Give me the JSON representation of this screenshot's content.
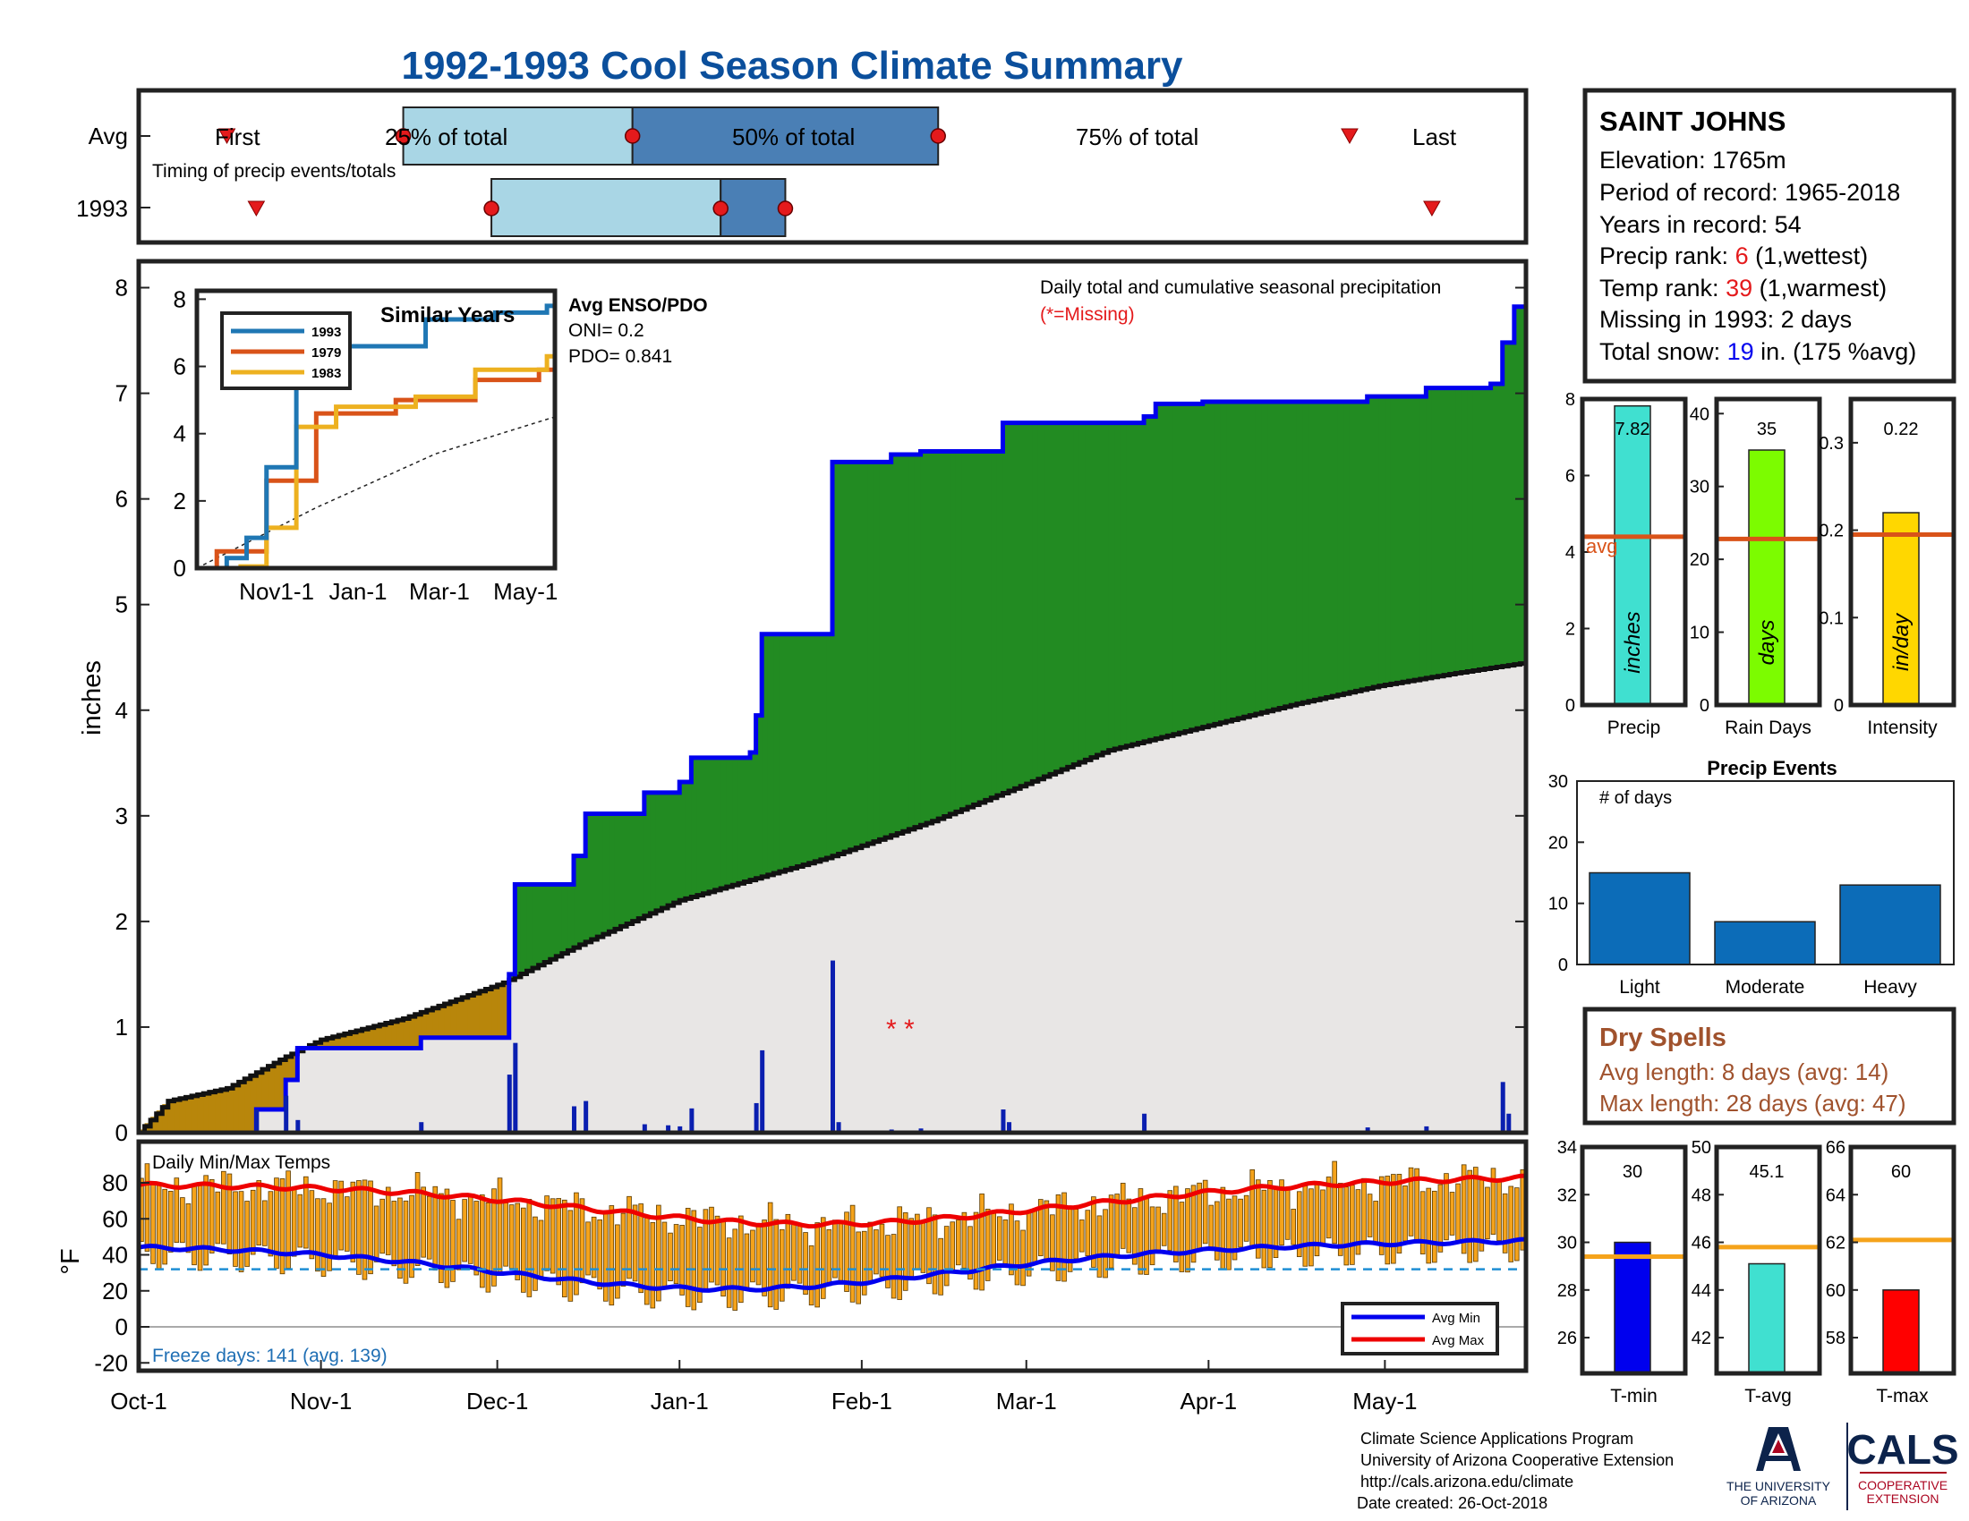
{
  "title": "1992-1993 Cool Season Climate Summary",
  "colors": {
    "title": "#0b4f9c",
    "green": "#228b22",
    "tan": "#b8860b",
    "blue": "#0000ee",
    "red": "#e41a1c",
    "steel": "#4a7fb5",
    "lightblue": "#a9d6e5"
  },
  "timing": {
    "row_labels": [
      "Avg",
      "1993"
    ],
    "caption": "Timing of precip events/totals",
    "avg_labels": [
      "First",
      "25% of total",
      "50% of total",
      "75% of total",
      "Last"
    ],
    "avg_days": {
      "first": 15,
      "p25": 45,
      "p50": 84,
      "p75": 136,
      "last": 206
    },
    "y1993_days": {
      "first": 20,
      "p25": 60,
      "p50": 99,
      "p75": 110,
      "last": 220
    }
  },
  "main": {
    "ylabel": "inches",
    "yticks": [
      "0",
      "1",
      "2",
      "3",
      "4",
      "5",
      "6",
      "7",
      "8"
    ],
    "xticks": [
      "Oct-1",
      "Nov-1",
      "Dec-1",
      "Jan-1",
      "Feb-1",
      "Mar-1",
      "Apr-1",
      "May-1"
    ],
    "daily_note": "Daily total and cumulative seasonal precipitation",
    "missing_note": "(*=Missing)",
    "missing_marker": "* *",
    "enso_title": "Avg ENSO/PDO",
    "oni": "ONI= 0.2",
    "pdo": "PDO= 0.841"
  },
  "inset": {
    "title": "Similar Years",
    "yticks": [
      "0",
      "2",
      "4",
      "6",
      "8"
    ],
    "xticks": [
      "Nov1-1",
      "Jan-1",
      "Mar-1",
      "May-1"
    ],
    "legend": [
      "1993",
      "1979",
      "1983"
    ]
  },
  "temps": {
    "label": "Daily Min/Max Temps",
    "ylabel": "°F",
    "yticks": [
      "80",
      "60",
      "40",
      "20",
      "0",
      "-20"
    ],
    "freeze": "Freeze days: 141 (avg. 139)",
    "legend": [
      "Avg Min",
      "Avg Max"
    ]
  },
  "info": {
    "station": "SAINT JOHNS",
    "elevation": "Elevation: 1765m",
    "period": "Period of record: 1965-2018",
    "years": "Years in record: 54",
    "precip_rank_label": "Precip rank: ",
    "precip_rank_value": "6",
    "precip_rank_suffix": " (1,wettest)",
    "temp_rank_label": "Temp rank: ",
    "temp_rank_value": "39",
    "temp_rank_suffix": " (1,warmest)",
    "missing": "Missing in 1993: 2 days",
    "snow_label": "Total snow: ",
    "snow_value": "19",
    "snow_suffix": " in. (175 %avg)"
  },
  "small_bars": [
    {
      "name": "Precip",
      "value": 7.82,
      "value_label": "7.82",
      "avg": 4.4,
      "unit": "inches",
      "ymax": 8,
      "yticks": [
        "0",
        "2",
        "4",
        "6",
        "8"
      ],
      "tickvals": [
        0,
        2,
        4,
        6,
        8
      ],
      "color": "#40e0d0",
      "avg_label": "avg"
    },
    {
      "name": "Rain Days",
      "value": 35,
      "value_label": "35",
      "avg": 22.8,
      "unit": "days",
      "ymax": 42,
      "yticks": [
        "0",
        "10",
        "20",
        "30",
        "40"
      ],
      "tickvals": [
        0,
        10,
        20,
        30,
        40
      ],
      "color": "#7cfc00"
    },
    {
      "name": "Intensity",
      "value": 0.22,
      "value_label": "0.22",
      "avg": 0.195,
      "unit": "in/day",
      "ymax": 0.35,
      "yticks": [
        "0",
        "0.1",
        "0.2",
        "0.3"
      ],
      "tickvals": [
        0,
        0.1,
        0.2,
        0.3
      ],
      "color": "#ffd700"
    }
  ],
  "events": {
    "title": "Precip Events",
    "ylabel": "# of days",
    "categories": [
      "Light",
      "Moderate",
      "Heavy"
    ],
    "values": [
      15,
      7,
      13
    ],
    "yticks": [
      "0",
      "10",
      "20",
      "30"
    ]
  },
  "dry": {
    "title": "Dry Spells",
    "avg": "Avg length: 8 days (avg: 14)",
    "max": "Max length: 28 days (avg: 47)"
  },
  "temp_bars": [
    {
      "name": "T-min",
      "value": 30,
      "value_label": "30",
      "avg": 29.4,
      "ymin": 24.5,
      "ymax": 34,
      "yticks": [
        "26",
        "28",
        "30",
        "32",
        "34"
      ],
      "tickvals": [
        26,
        28,
        30,
        32,
        34
      ],
      "color": "#0000ee"
    },
    {
      "name": "T-avg",
      "value": 45.1,
      "value_label": "45.1",
      "avg": 45.8,
      "ymin": 40.5,
      "ymax": 50,
      "yticks": [
        "42",
        "44",
        "46",
        "48",
        "50"
      ],
      "tickvals": [
        42,
        44,
        46,
        48,
        50
      ],
      "color": "#40e0d0"
    },
    {
      "name": "T-max",
      "value": 60,
      "value_label": "60",
      "avg": 62.1,
      "ymin": 56.5,
      "ymax": 66,
      "yticks": [
        "58",
        "60",
        "62",
        "64",
        "66"
      ],
      "tickvals": [
        58,
        60,
        62,
        64,
        66
      ],
      "color": "#ff0000"
    }
  ],
  "footer": {
    "line1": "Climate Science Applications Program",
    "line2": "University of Arizona Cooperative Extension",
    "line3": "http://cals.arizona.edu/climate",
    "line4": " Date created: 26-Oct-2018",
    "ua_line1": "THE UNIVERSITY",
    "ua_line2": "OF ARIZONA",
    "cals": "CALS",
    "coop1": "COOPERATIVE",
    "coop2": "EXTENSION"
  },
  "chart_data": {
    "type": "area",
    "title": "1992-1993 Cool Season Climate Summary",
    "ylabel": "inches",
    "ylim": [
      0,
      8.25
    ],
    "x_range_days": [
      0,
      236
    ],
    "series": [
      {
        "name": "1993",
        "type": "step",
        "points": [
          [
            0,
            0
          ],
          [
            20,
            0
          ],
          [
            20,
            0.22
          ],
          [
            25,
            0.22
          ],
          [
            25,
            0.5
          ],
          [
            27,
            0.5
          ],
          [
            27,
            0.8
          ],
          [
            48,
            0.8
          ],
          [
            48,
            0.9
          ],
          [
            63,
            0.9
          ],
          [
            63,
            1.5
          ],
          [
            64,
            1.5
          ],
          [
            64,
            2.35
          ],
          [
            74,
            2.35
          ],
          [
            74,
            2.62
          ],
          [
            76,
            2.62
          ],
          [
            76,
            3.02
          ],
          [
            86,
            3.02
          ],
          [
            86,
            3.22
          ],
          [
            92,
            3.22
          ],
          [
            92,
            3.32
          ],
          [
            94,
            3.32
          ],
          [
            94,
            3.55
          ],
          [
            104,
            3.55
          ],
          [
            104,
            3.6
          ],
          [
            105,
            3.6
          ],
          [
            105,
            3.95
          ],
          [
            106,
            3.95
          ],
          [
            106,
            4.72
          ],
          [
            118,
            4.72
          ],
          [
            118,
            6.35
          ],
          [
            128,
            6.35
          ],
          [
            128,
            6.42
          ],
          [
            133,
            6.42
          ],
          [
            133,
            6.45
          ],
          [
            147,
            6.45
          ],
          [
            147,
            6.72
          ],
          [
            171,
            6.72
          ],
          [
            171,
            6.78
          ],
          [
            173,
            6.78
          ],
          [
            173,
            6.9
          ],
          [
            181,
            6.9
          ],
          [
            181,
            6.92
          ],
          [
            209,
            6.92
          ],
          [
            209,
            6.97
          ],
          [
            219,
            6.97
          ],
          [
            219,
            7.05
          ],
          [
            230,
            7.05
          ],
          [
            230,
            7.09
          ],
          [
            232,
            7.09
          ],
          [
            232,
            7.48
          ],
          [
            234,
            7.48
          ],
          [
            234,
            7.82
          ],
          [
            236,
            7.82
          ]
        ]
      },
      {
        "name": "Avg",
        "type": "cumulative",
        "points": [
          [
            0,
            0
          ],
          [
            5,
            0.3
          ],
          [
            15,
            0.42
          ],
          [
            25,
            0.72
          ],
          [
            31,
            0.88
          ],
          [
            45,
            1.08
          ],
          [
            62,
            1.42
          ],
          [
            75,
            1.78
          ],
          [
            92,
            2.2
          ],
          [
            117,
            2.6
          ],
          [
            135,
            2.95
          ],
          [
            150,
            3.28
          ],
          [
            165,
            3.62
          ],
          [
            181,
            3.84
          ],
          [
            197,
            4.06
          ],
          [
            211,
            4.23
          ],
          [
            224,
            4.35
          ],
          [
            236,
            4.45
          ]
        ]
      },
      {
        "name": "Daily",
        "type": "bar",
        "points": [
          [
            20,
            0.22
          ],
          [
            25,
            0.35
          ],
          [
            27,
            0.12
          ],
          [
            48,
            0.1
          ],
          [
            63,
            0.55
          ],
          [
            64,
            0.85
          ],
          [
            74,
            0.25
          ],
          [
            76,
            0.3
          ],
          [
            86,
            0.08
          ],
          [
            90,
            0.07
          ],
          [
            92,
            0.06
          ],
          [
            94,
            0.23
          ],
          [
            105,
            0.28
          ],
          [
            106,
            0.78
          ],
          [
            118,
            1.63
          ],
          [
            119,
            0.1
          ],
          [
            128,
            0.03
          ],
          [
            133,
            0.04
          ],
          [
            147,
            0.22
          ],
          [
            148,
            0.1
          ],
          [
            171,
            0.18
          ],
          [
            181,
            0.02
          ],
          [
            209,
            0.05
          ],
          [
            219,
            0.06
          ],
          [
            220,
            0.02
          ],
          [
            232,
            0.48
          ],
          [
            233,
            0.18
          ]
        ]
      }
    ],
    "inset_series": [
      {
        "name": "1993",
        "points": [
          [
            0,
            0
          ],
          [
            15,
            0.3
          ],
          [
            25,
            0.9
          ],
          [
            35,
            3.0
          ],
          [
            50,
            6.6
          ],
          [
            80,
            6.6
          ],
          [
            115,
            7.4
          ],
          [
            150,
            7.6
          ],
          [
            176,
            7.8
          ],
          [
            180,
            8.0
          ]
        ]
      },
      {
        "name": "1979",
        "points": [
          [
            0,
            0
          ],
          [
            10,
            0.5
          ],
          [
            35,
            2.6
          ],
          [
            60,
            4.6
          ],
          [
            100,
            5.0
          ],
          [
            140,
            5.6
          ],
          [
            172,
            5.9
          ],
          [
            180,
            6.2
          ]
        ]
      },
      {
        "name": "1983",
        "points": [
          [
            0,
            0
          ],
          [
            22,
            0.05
          ],
          [
            35,
            1.2
          ],
          [
            50,
            4.2
          ],
          [
            70,
            4.8
          ],
          [
            110,
            5.1
          ],
          [
            140,
            5.9
          ],
          [
            176,
            6.3
          ],
          [
            180,
            6.5
          ]
        ]
      }
    ],
    "temps": {
      "avg_max_endpoints": [
        [
          0,
          79
        ],
        [
          236,
          83
        ]
      ],
      "avg_min_endpoints": [
        [
          0,
          45
        ],
        [
          236,
          46
        ]
      ],
      "freeze_line": 32
    }
  }
}
